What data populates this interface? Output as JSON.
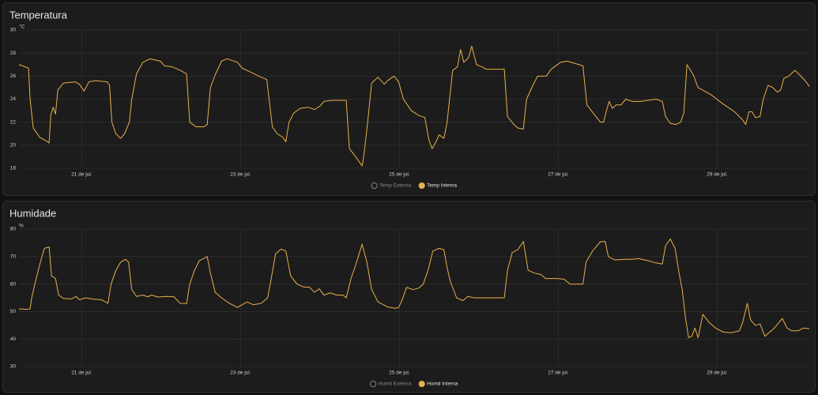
{
  "chart_data": [
    {
      "type": "line",
      "title": "Temperatura",
      "y_unit": "°C",
      "grid": true,
      "xlim": [
        20.21,
        30.16
      ],
      "xticks": [
        {
          "value": 21,
          "label": "21 de jul."
        },
        {
          "value": 23,
          "label": "23 de jul."
        },
        {
          "value": 25,
          "label": "25 de jul."
        },
        {
          "value": 27,
          "label": "27 de jul."
        },
        {
          "value": 29,
          "label": "29 de jul."
        }
      ],
      "ylim": [
        18,
        30
      ],
      "yticks": [
        18,
        20,
        22,
        24,
        26,
        28,
        30
      ],
      "x": [
        20.21,
        20.33,
        20.35,
        20.39,
        20.47,
        20.57,
        20.59,
        20.61,
        20.64,
        20.67,
        20.7,
        20.77,
        20.92,
        20.97,
        21.03,
        21.09,
        21.17,
        21.32,
        21.35,
        21.38,
        21.43,
        21.49,
        21.54,
        21.6,
        21.63,
        21.69,
        21.77,
        21.86,
        21.99,
        22.04,
        22.14,
        22.24,
        22.32,
        22.36,
        22.44,
        22.54,
        22.58,
        22.62,
        22.68,
        22.76,
        22.83,
        22.96,
        23.02,
        23.14,
        23.26,
        23.33,
        23.4,
        23.46,
        23.53,
        23.57,
        23.61,
        23.67,
        23.75,
        23.85,
        23.93,
        24.0,
        24.05,
        24.15,
        24.33,
        24.37,
        24.45,
        24.53,
        24.55,
        24.6,
        24.65,
        24.73,
        24.81,
        24.85,
        24.93,
        24.99,
        25.05,
        25.15,
        25.24,
        25.32,
        25.37,
        25.41,
        25.46,
        25.5,
        25.56,
        25.6,
        25.67,
        25.73,
        25.77,
        25.81,
        25.87,
        25.91,
        25.97,
        26.04,
        26.09,
        26.32,
        26.36,
        26.44,
        26.49,
        26.56,
        26.6,
        26.68,
        26.74,
        26.85,
        26.91,
        27.03,
        27.11,
        27.31,
        27.36,
        27.45,
        27.53,
        27.57,
        27.61,
        27.64,
        27.68,
        27.73,
        27.79,
        27.85,
        27.93,
        28.03,
        28.13,
        28.23,
        28.31,
        28.35,
        28.41,
        28.48,
        28.54,
        28.58,
        28.62,
        28.7,
        28.76,
        28.92,
        29.07,
        29.22,
        29.32,
        29.36,
        29.4,
        29.44,
        29.48,
        29.54,
        29.58,
        29.64,
        29.7,
        29.76,
        29.8,
        29.84,
        29.9,
        29.98,
        30.04,
        30.12,
        30.16
      ],
      "series": [
        {
          "name": "Temp Externa",
          "color": "#9e9e9e",
          "visible": false
        },
        {
          "name": "Temp Interna",
          "color": "#e8b04a",
          "visible": true,
          "values": [
            27.0,
            26.7,
            24.0,
            21.5,
            20.7,
            20.3,
            20.2,
            22.6,
            23.3,
            22.7,
            24.8,
            25.4,
            25.5,
            25.3,
            24.7,
            25.5,
            25.6,
            25.5,
            25.2,
            22.0,
            21.0,
            20.6,
            21.0,
            22.0,
            24.0,
            26.2,
            27.2,
            27.5,
            27.3,
            26.9,
            26.8,
            26.5,
            26.2,
            22.0,
            21.6,
            21.6,
            21.8,
            25.0,
            26.1,
            27.3,
            27.5,
            27.2,
            26.7,
            26.3,
            25.9,
            25.7,
            21.6,
            21.0,
            20.7,
            20.3,
            22.0,
            22.8,
            23.2,
            23.3,
            23.1,
            23.4,
            23.8,
            23.9,
            23.9,
            19.7,
            19.0,
            18.2,
            19.0,
            22.0,
            25.4,
            25.9,
            25.3,
            25.6,
            26.0,
            25.5,
            24.0,
            23.0,
            22.6,
            22.4,
            20.5,
            19.7,
            20.3,
            20.9,
            20.6,
            22.0,
            26.5,
            26.8,
            28.3,
            27.2,
            27.6,
            28.6,
            27.0,
            26.8,
            26.6,
            26.6,
            22.5,
            21.8,
            21.5,
            21.4,
            24.0,
            25.2,
            26.0,
            26.0,
            26.6,
            27.2,
            27.3,
            26.9,
            23.5,
            22.7,
            22.0,
            22.0,
            23.1,
            23.8,
            23.2,
            23.5,
            23.5,
            24.0,
            23.8,
            23.8,
            23.9,
            24.0,
            23.8,
            22.5,
            21.9,
            21.8,
            22.0,
            22.8,
            27.0,
            26.1,
            25.0,
            24.4,
            23.6,
            22.9,
            22.2,
            21.8,
            22.9,
            22.9,
            22.4,
            22.5,
            24.0,
            25.2,
            25.0,
            24.6,
            24.8,
            25.8,
            26.0,
            26.5,
            26.1,
            25.5,
            25.1
          ]
        }
      ]
    },
    {
      "type": "line",
      "title": "Humidade",
      "y_unit": "%",
      "grid": true,
      "xlim": [
        20.21,
        30.16
      ],
      "xticks": [
        {
          "value": 21,
          "label": "21 de jul."
        },
        {
          "value": 23,
          "label": "23 de jul."
        },
        {
          "value": 25,
          "label": "25 de jul."
        },
        {
          "value": 27,
          "label": "27 de jul."
        },
        {
          "value": 29,
          "label": "29 de jul."
        }
      ],
      "ylim": [
        30,
        80
      ],
      "yticks": [
        30,
        40,
        50,
        60,
        70,
        80
      ],
      "x": [
        20.21,
        20.31,
        20.35,
        20.37,
        20.41,
        20.47,
        20.53,
        20.59,
        20.62,
        20.67,
        20.71,
        20.77,
        20.87,
        20.93,
        20.97,
        21.05,
        21.15,
        21.25,
        21.33,
        21.37,
        21.43,
        21.49,
        21.55,
        21.59,
        21.63,
        21.69,
        21.77,
        21.83,
        21.88,
        21.96,
        22.06,
        22.16,
        22.24,
        22.32,
        22.36,
        22.42,
        22.48,
        22.58,
        22.62,
        22.68,
        22.76,
        22.86,
        22.96,
        23.02,
        23.08,
        23.16,
        23.26,
        23.34,
        23.38,
        23.44,
        23.51,
        23.57,
        23.63,
        23.71,
        23.79,
        23.87,
        23.93,
        23.99,
        24.05,
        24.13,
        24.21,
        24.29,
        24.33,
        24.39,
        24.45,
        24.53,
        24.59,
        24.65,
        24.73,
        24.85,
        24.95,
        24.99,
        25.03,
        25.09,
        25.17,
        25.24,
        25.3,
        25.36,
        25.42,
        25.5,
        25.56,
        25.6,
        25.64,
        25.72,
        25.8,
        25.86,
        25.94,
        26.04,
        26.32,
        26.36,
        26.42,
        26.49,
        26.56,
        26.62,
        26.7,
        26.78,
        26.84,
        26.99,
        27.07,
        27.15,
        27.31,
        27.35,
        27.43,
        27.53,
        27.59,
        27.63,
        27.71,
        27.83,
        27.93,
        28.01,
        28.13,
        28.23,
        28.31,
        28.35,
        28.41,
        28.47,
        28.52,
        28.56,
        28.6,
        28.64,
        28.68,
        28.72,
        28.76,
        28.82,
        28.9,
        28.98,
        29.08,
        29.18,
        29.28,
        29.32,
        29.38,
        29.42,
        29.48,
        29.54,
        29.6,
        29.66,
        29.72,
        29.82,
        29.88,
        29.94,
        30.02,
        30.08,
        30.16
      ],
      "series": [
        {
          "name": "Humd Externa",
          "color": "#9e9e9e",
          "visible": false
        },
        {
          "name": "Humd Interna",
          "color": "#e8b04a",
          "visible": true,
          "values": [
            51,
            50.8,
            51,
            55,
            60,
            67,
            73,
            73.5,
            63,
            62,
            56,
            54.8,
            54.6,
            55.5,
            54.3,
            55,
            54.5,
            54.3,
            53,
            60,
            65,
            68,
            69,
            68,
            58,
            55.5,
            56,
            55.4,
            56,
            55.3,
            55.5,
            55.4,
            53,
            52.9,
            60,
            65,
            68.5,
            70,
            64,
            57,
            55,
            53,
            51.5,
            52.5,
            53.5,
            52.5,
            53,
            55,
            61,
            71,
            72.7,
            72,
            63,
            60,
            59,
            58.8,
            57,
            58.3,
            56,
            56.8,
            56,
            56,
            55,
            62,
            67,
            74.5,
            68,
            58,
            53.5,
            51.7,
            51.2,
            51.5,
            54,
            58.8,
            58,
            58.5,
            60,
            65,
            72,
            73,
            72.5,
            66,
            61,
            55,
            54,
            55.5,
            55,
            55,
            55,
            65,
            71.5,
            72.5,
            75.5,
            65,
            64,
            63.5,
            62,
            62,
            61.8,
            60,
            60,
            68,
            72,
            75.4,
            75.5,
            70,
            68.8,
            69,
            69,
            69.3,
            68.5,
            67.7,
            67.3,
            74,
            76.4,
            73,
            64,
            58,
            48,
            40.5,
            41,
            44,
            40.5,
            49,
            46,
            44,
            42.5,
            42.3,
            43,
            46,
            53,
            47,
            45,
            45.5,
            41,
            42.5,
            44,
            47.5,
            44,
            43,
            43,
            44,
            43.8
          ]
        }
      ]
    }
  ]
}
